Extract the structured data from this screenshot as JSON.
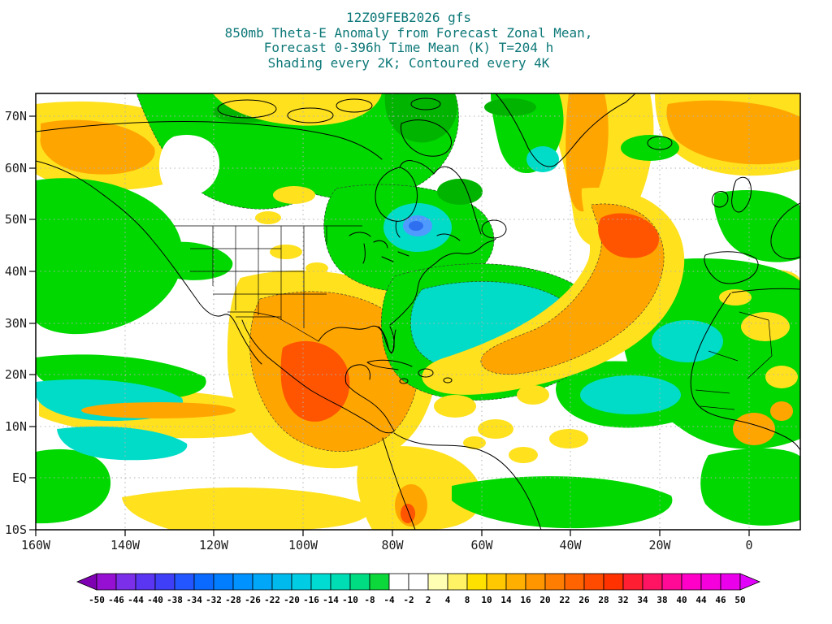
{
  "title": {
    "lines": [
      "12Z09FEB2026 gfs",
      "850mb Theta-E Anomaly from Forecast Zonal Mean,",
      "Forecast 0-396h Time Mean (K) T=204 h",
      "Shading every 2K; Contoured every 4K"
    ]
  },
  "map": {
    "y_axis_labels": [
      "70N",
      "60N",
      "50N",
      "40N",
      "30N",
      "20N",
      "10N",
      "EQ",
      "10S"
    ],
    "x_axis_labels": [
      "160W",
      "140W",
      "120W",
      "100W",
      "80W",
      "60W",
      "40W",
      "20W",
      "0"
    ]
  },
  "colorbar": {
    "tick_labels": [
      "-50",
      "-46",
      "-44",
      "-40",
      "-38",
      "-34",
      "-32",
      "-28",
      "-26",
      "-22",
      "-20",
      "-16",
      "-14",
      "-10",
      "-8",
      "-4",
      "-2",
      "2",
      "4",
      "8",
      "10",
      "14",
      "16",
      "20",
      "22",
      "26",
      "28",
      "32",
      "34",
      "38",
      "40",
      "44",
      "46",
      "50"
    ],
    "segment_colors": [
      "#7f00b2",
      "#9510d2",
      "#7b2fe8",
      "#5a35f2",
      "#3f3ff8",
      "#2456ff",
      "#0a6aff",
      "#007eff",
      "#0092ff",
      "#00a6f8",
      "#00baee",
      "#00cde4",
      "#00dcd2",
      "#00dcb4",
      "#00dc82",
      "#0cd83c",
      "#ffffff",
      "#ffffff",
      "#ffffb4",
      "#fff264",
      "#ffe100",
      "#ffc800",
      "#ffaf00",
      "#ff9600",
      "#ff7d00",
      "#ff6400",
      "#ff4b00",
      "#ff3200",
      "#ff1e32",
      "#ff1464",
      "#ff0a96",
      "#ff00c8",
      "#f500dc",
      "#eb00eb",
      "#e100fa"
    ]
  },
  "colors": {
    "title_text": "#0e7878",
    "axis_text": "#1c1c1c",
    "grid_dots": "#b0b0b0",
    "shade_green": "#00d800",
    "shade_dark_green": "#00b400",
    "shade_cyan": "#00dcc8",
    "shade_blue": "#4f9aff",
    "shade_deep_blue": "#2e6ff0",
    "shade_yellow": "#ffe11e",
    "shade_orange": "#ffa500",
    "shade_red_orange": "#ff5400"
  }
}
